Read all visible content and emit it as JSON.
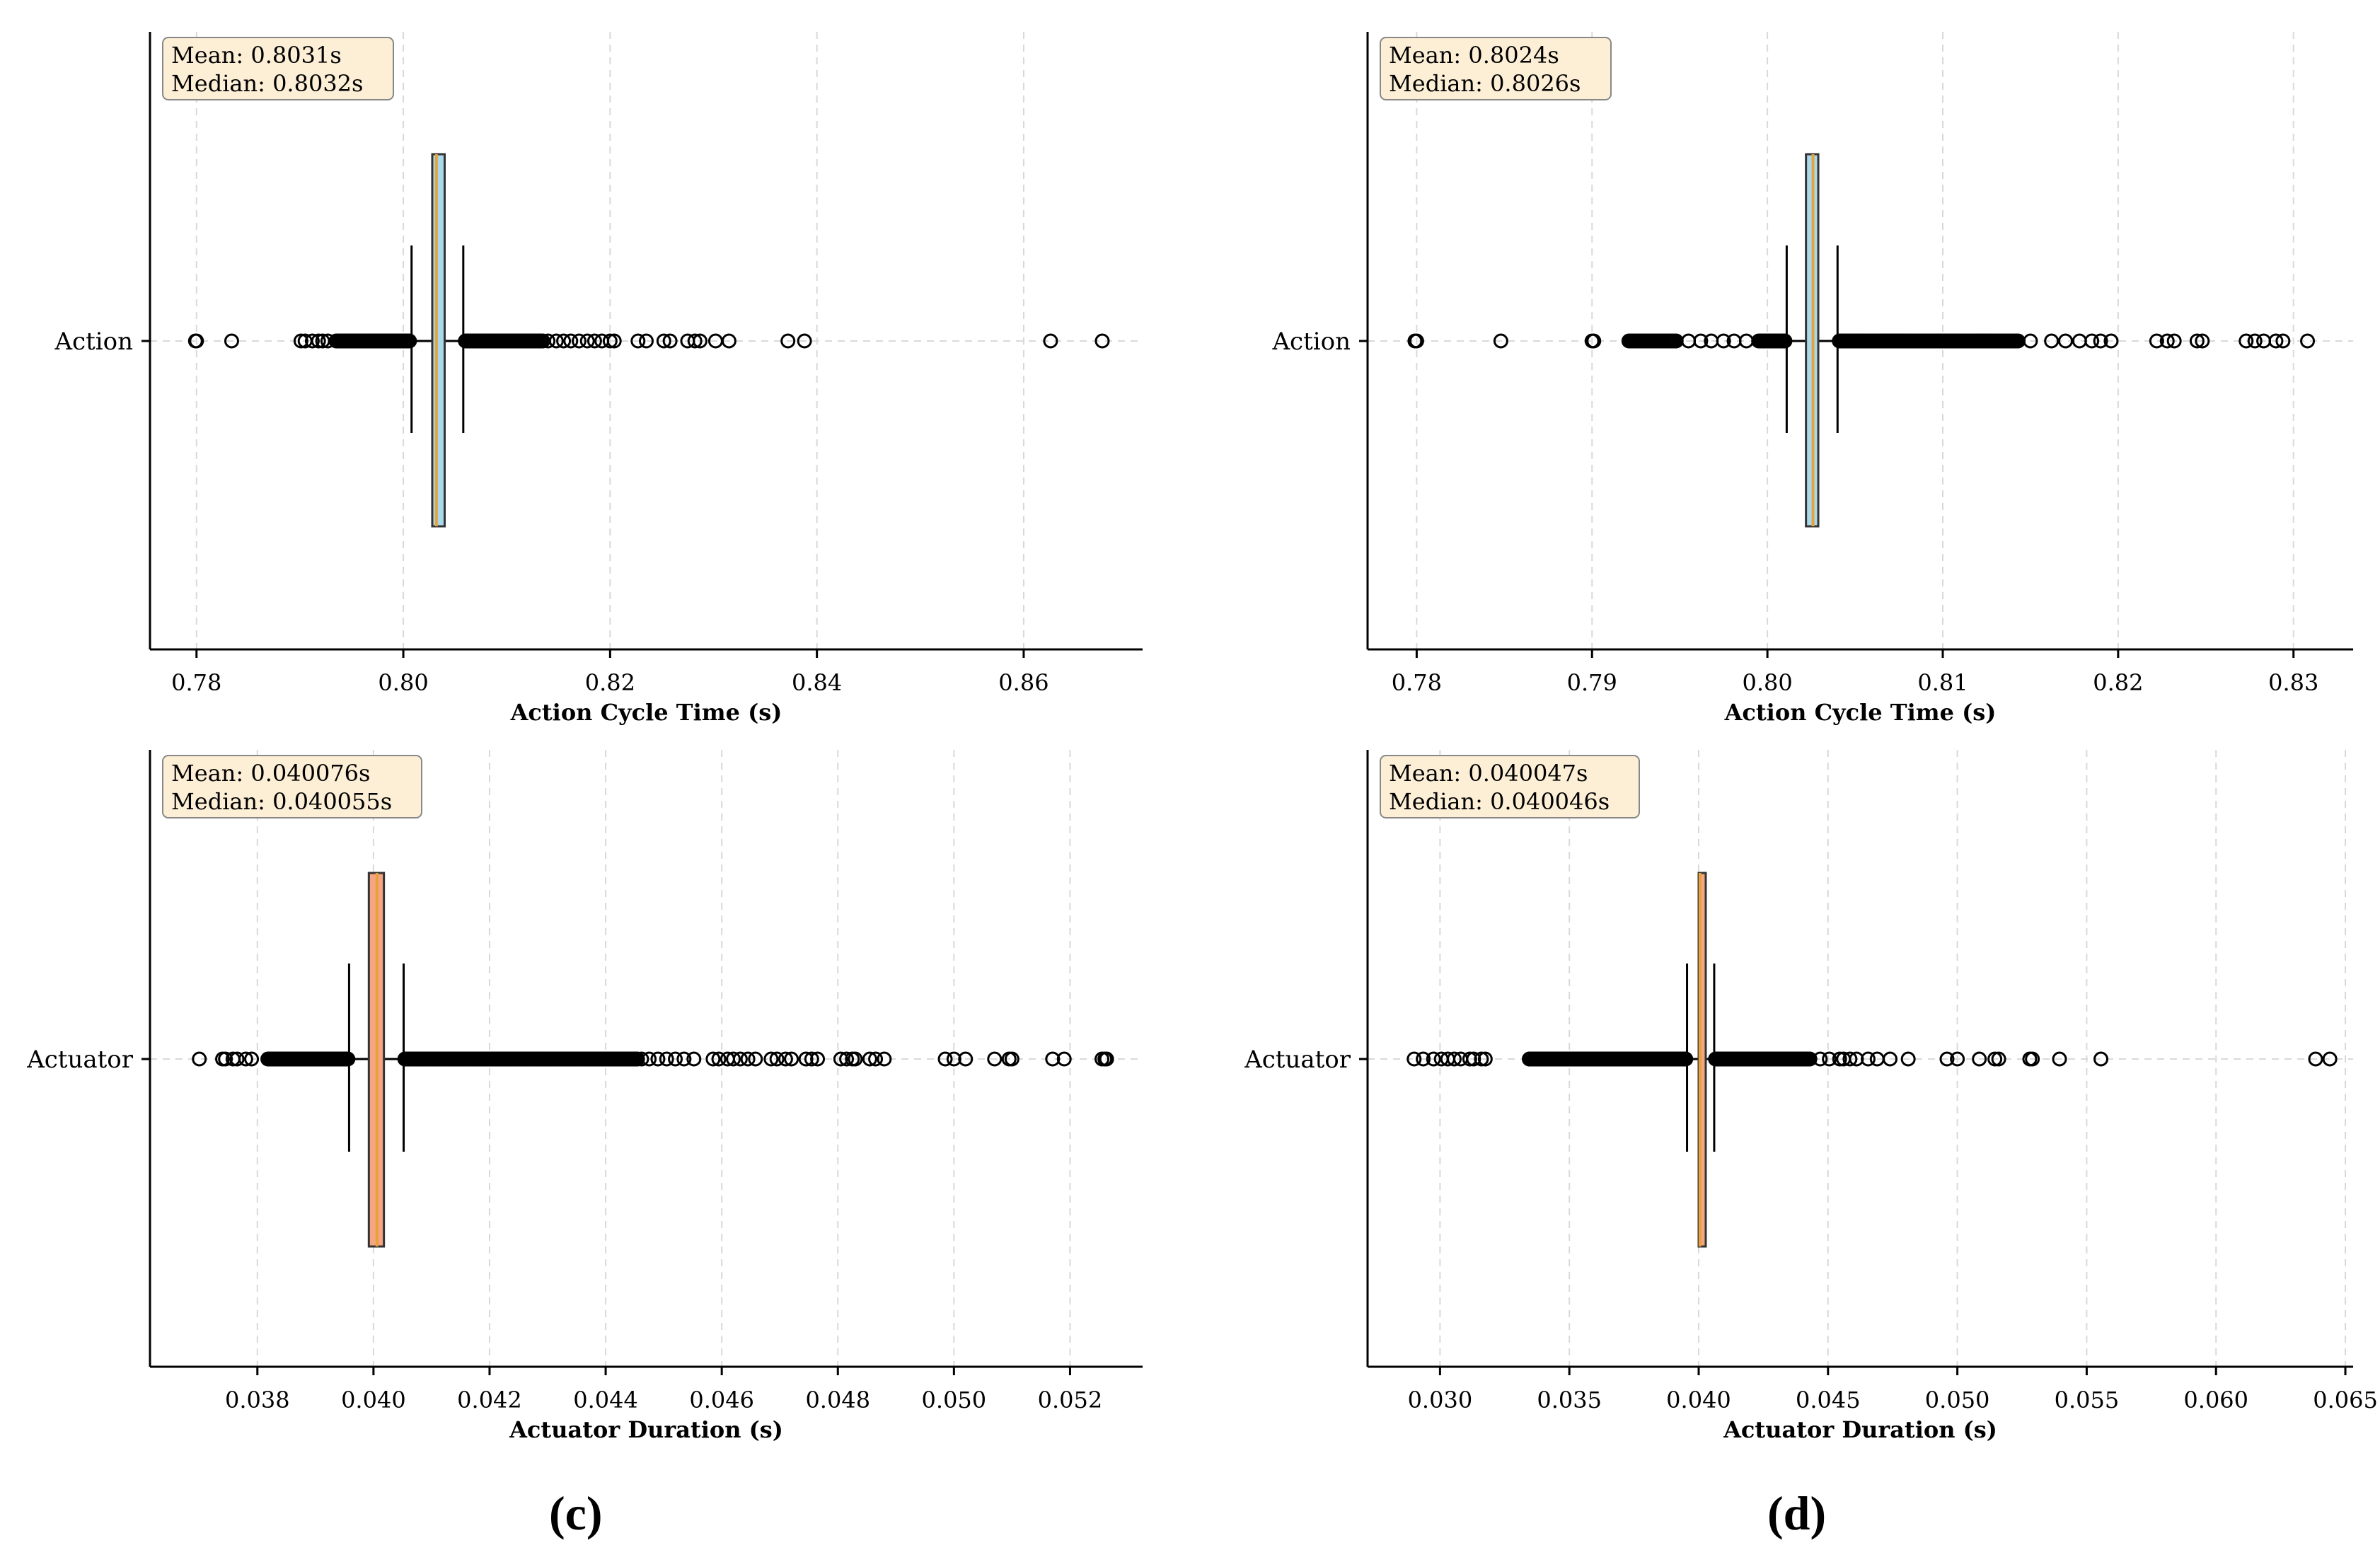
{
  "panels": [
    {
      "id": "a",
      "category": "Action",
      "xlabel": "Action Cycle Time (s)",
      "xlim": [
        0.7755,
        0.8715
      ],
      "ticks": [
        0.78,
        0.8,
        0.82,
        0.84,
        0.86
      ],
      "tick_labels": [
        "0.78",
        "0.80",
        "0.82",
        "0.84",
        "0.86"
      ],
      "stats": {
        "mean": "Mean: 0.8031s",
        "median": "Median: 0.8032s"
      },
      "box": {
        "whisker_low": 0.8008,
        "q1": 0.8028,
        "median": 0.8032,
        "q3": 0.804,
        "whisker_high": 0.8058,
        "color": "#a8d8ea"
      },
      "outlier_ranges": [
        [
          0.7935,
          0.8006,
          60
        ],
        [
          0.806,
          0.8135,
          70
        ]
      ],
      "outliers": [
        0.7799,
        0.78,
        0.7834,
        0.7901,
        0.7905,
        0.7912,
        0.7918,
        0.7922,
        0.7927,
        0.814,
        0.8148,
        0.8155,
        0.8162,
        0.817,
        0.8178,
        0.8185,
        0.8192,
        0.82,
        0.8204,
        0.8227,
        0.8235,
        0.8252,
        0.8258,
        0.8275,
        0.8282,
        0.8287,
        0.8302,
        0.8315,
        0.8372,
        0.8388,
        0.8626,
        0.8676
      ]
    },
    {
      "id": "b",
      "category": "Action",
      "xlabel": "Action Cycle Time (s)",
      "xlim": [
        0.7772,
        0.8334
      ],
      "ticks": [
        0.78,
        0.79,
        0.8,
        0.81,
        0.82,
        0.83
      ],
      "tick_labels": [
        "0.78",
        "0.79",
        "0.80",
        "0.81",
        "0.82",
        "0.83"
      ],
      "stats": {
        "mean": "Mean: 0.8024s",
        "median": "Median: 0.8026s"
      },
      "box": {
        "whisker_low": 0.8011,
        "q1": 0.8022,
        "median": 0.8026,
        "q3": 0.8029,
        "whisker_high": 0.804,
        "color": "#a8d8ea"
      },
      "outlier_ranges": [
        [
          0.7921,
          0.7948,
          25
        ],
        [
          0.7995,
          0.801,
          20
        ],
        [
          0.8041,
          0.8143,
          110
        ]
      ],
      "outliers": [
        0.7799,
        0.78,
        0.7848,
        0.79,
        0.7901,
        0.7955,
        0.7962,
        0.7968,
        0.7975,
        0.7981,
        0.7988,
        0.815,
        0.8162,
        0.817,
        0.8178,
        0.8185,
        0.819,
        0.8196,
        0.8222,
        0.8228,
        0.8232,
        0.8245,
        0.8248,
        0.8273,
        0.8278,
        0.8283,
        0.829,
        0.8294,
        0.8308
      ]
    },
    {
      "id": "c",
      "category": "Actuator",
      "xlabel": "Actuator Duration (s)",
      "xlim": [
        0.03615,
        0.05325
      ],
      "ticks": [
        0.038,
        0.04,
        0.042,
        0.044,
        0.046,
        0.048,
        0.05,
        0.052
      ],
      "tick_labels": [
        "0.038",
        "0.040",
        "0.042",
        "0.044",
        "0.046",
        "0.048",
        "0.050",
        "0.052"
      ],
      "stats": {
        "mean": "Mean: 0.040076s",
        "median": "Median: 0.040055s"
      },
      "box": {
        "whisker_low": 0.03958,
        "q1": 0.03992,
        "median": 0.04006,
        "q3": 0.04018,
        "whisker_high": 0.04052,
        "color": "#f4a582"
      },
      "outlier_ranges": [
        [
          0.03818,
          0.03956,
          70
        ],
        [
          0.04054,
          0.04455,
          200
        ]
      ],
      "outliers": [
        0.037,
        0.0374,
        0.03745,
        0.03758,
        0.03765,
        0.0378,
        0.0379,
        0.04462,
        0.04475,
        0.0449,
        0.04505,
        0.0452,
        0.04535,
        0.04552,
        0.04585,
        0.04595,
        0.0461,
        0.0462,
        0.04632,
        0.04645,
        0.04658,
        0.04685,
        0.04695,
        0.0471,
        0.0472,
        0.04745,
        0.04755,
        0.04765,
        0.04805,
        0.04815,
        0.04825,
        0.0483,
        0.04855,
        0.04865,
        0.0488,
        0.04985,
        0.05,
        0.0502,
        0.0507,
        0.05095,
        0.051,
        0.0517,
        0.0519,
        0.05255,
        0.0526,
        0.05263
      ]
    },
    {
      "id": "d",
      "category": "Actuator",
      "xlabel": "Actuator Duration (s)",
      "xlim": [
        0.0272,
        0.0653
      ],
      "ticks": [
        0.03,
        0.035,
        0.04,
        0.045,
        0.05,
        0.055,
        0.06,
        0.065
      ],
      "tick_labels": [
        "0.030",
        "0.035",
        "0.040",
        "0.045",
        "0.050",
        "0.055",
        "0.060",
        "0.065"
      ],
      "stats": {
        "mean": "Mean: 0.040047s",
        "median": "Median: 0.040046s"
      },
      "box": {
        "whisker_low": 0.03955,
        "q1": 0.04,
        "median": 0.04005,
        "q3": 0.04012,
        "whisker_high": 0.0406,
        "color": "#f4a582"
      },
      "outlier_ranges": [
        [
          0.03345,
          0.0395,
          180
        ],
        [
          0.04065,
          0.0443,
          110
        ]
      ],
      "outliers": [
        0.029,
        0.02935,
        0.02975,
        0.03005,
        0.0303,
        0.03055,
        0.0308,
        0.03115,
        0.0313,
        0.0316,
        0.03175,
        0.0447,
        0.04505,
        0.04545,
        0.0456,
        0.04585,
        0.0461,
        0.04655,
        0.0469,
        0.0474,
        0.0481,
        0.0496,
        0.05,
        0.05085,
        0.05145,
        0.0516,
        0.0528,
        0.0529,
        0.05395,
        0.05555,
        0.06385,
        0.0644
      ]
    }
  ],
  "captions": [
    "(c)",
    "(d)"
  ]
}
